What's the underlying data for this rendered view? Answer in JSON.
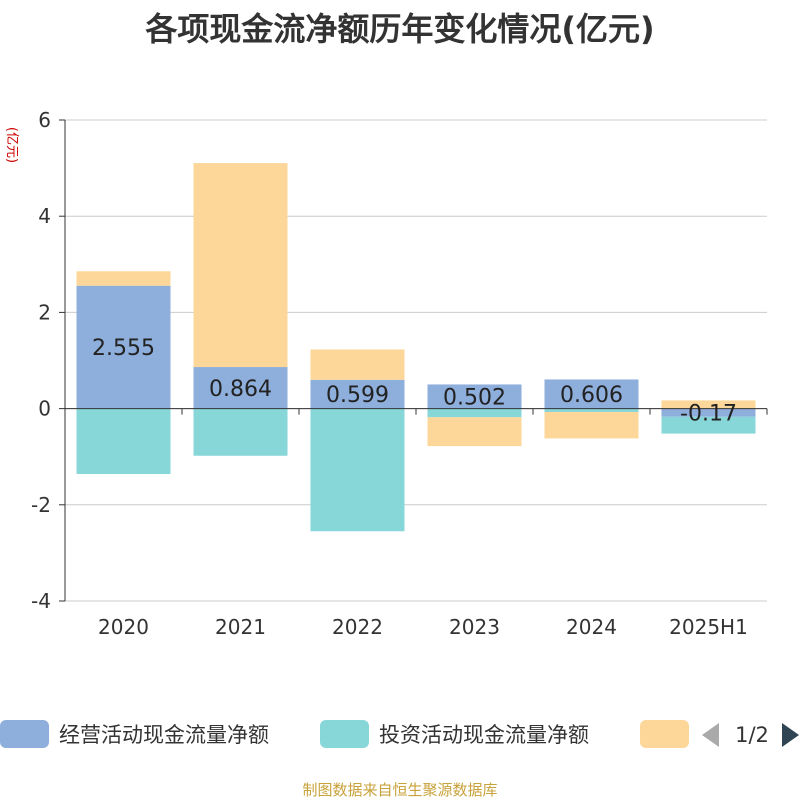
{
  "title": "各项现金流净额历年变化情况(亿元)",
  "source_note": "制图数据来自恒生聚源数据库",
  "pager": "1/2",
  "chart_data": {
    "type": "bar",
    "stacked": true,
    "ylabel": "(亿元)",
    "ylim": [
      -4,
      6
    ],
    "yticks": [
      -4,
      -2,
      0,
      2,
      4,
      6
    ],
    "categories": [
      "2020",
      "2021",
      "2022",
      "2023",
      "2024",
      "2025H1"
    ],
    "series": [
      {
        "name": "经营活动现金流量净额",
        "color": "#8eaedb",
        "values": [
          2.555,
          0.864,
          0.599,
          0.502,
          0.606,
          -0.17
        ],
        "labels": [
          "2.555",
          "0.864",
          "0.599",
          "0.502",
          "0.606",
          "-0.17"
        ]
      },
      {
        "name": "投资活动现金流量净额",
        "color": "#87d6d8",
        "values": [
          -1.36,
          -0.98,
          -2.55,
          -0.18,
          -0.07,
          -0.35
        ]
      },
      {
        "name": "",
        "color": "#fdd799",
        "values": [
          0.3,
          4.24,
          0.63,
          -0.6,
          -0.55,
          0.17
        ]
      }
    ],
    "grid": true,
    "legend_position": "bottom"
  }
}
